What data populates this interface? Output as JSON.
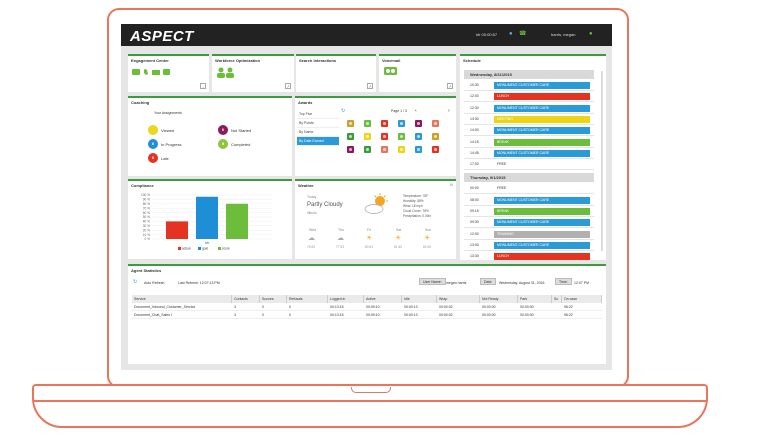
{
  "brand": {
    "logo": "ASPECT",
    "accent": "#3d9a3d",
    "frame_color": "#e8765c"
  },
  "topbar": {
    "user_id": "kfr 00:00:57",
    "user_name": "harris, megan"
  },
  "engagement": {
    "title": "Engagement Center"
  },
  "workforce": {
    "title": "Workforce Optimization"
  },
  "search": {
    "title": "Search Interactions"
  },
  "voicemail": {
    "title": "Voicemail"
  },
  "coaching": {
    "title": "Coaching",
    "header": "Your Assignments",
    "items": [
      {
        "count": "",
        "label": "Viewed",
        "color": "#e8d81e"
      },
      {
        "count": "0",
        "label": "Not Started",
        "color": "#8b1a5e"
      },
      {
        "count": "0",
        "label": "In Progress",
        "color": "#1e8fd6"
      },
      {
        "count": "5",
        "label": "Completed",
        "color": "#8cc63f"
      },
      {
        "count": "0",
        "label": "Late",
        "color": "#e53322"
      }
    ]
  },
  "awards": {
    "title": "Awards",
    "page": "Page 1 / 3",
    "tabs": [
      "Top Five",
      "By Points",
      "By Name",
      "By Date Earned"
    ]
  },
  "schedule": {
    "title": "Schedule",
    "days": [
      {
        "date": "Wednesday, 8/31/2015",
        "rows": [
          {
            "time": "10:30",
            "label": "MONUMENT CUSTOMER CARE",
            "color": "#2b9bd8"
          },
          {
            "time": "12:00",
            "label": "LUNCH",
            "color": "#e53322"
          },
          {
            "time": "12:30",
            "label": "MONUMENT CUSTOMER CARE",
            "color": "#2b9bd8"
          },
          {
            "time": "13:30",
            "label": "MEETING",
            "color": "#ecd515"
          },
          {
            "time": "14:00",
            "label": "MONUMENT CUSTOMER CARE",
            "color": "#2b9bd8"
          },
          {
            "time": "14:15",
            "label": "BREAK",
            "color": "#6cbd3c"
          },
          {
            "time": "14:45",
            "label": "MONUMENT CUSTOMER CARE",
            "color": "#2b9bd8"
          },
          {
            "time": "17:00",
            "label": "FREE",
            "color": ""
          }
        ]
      },
      {
        "date": "Thursday, 9/1/2015",
        "rows": [
          {
            "time": "00:00",
            "label": "FREE",
            "color": ""
          },
          {
            "time": "08:00",
            "label": "MONUMENT CUSTOMER CARE",
            "color": "#2b9bd8"
          },
          {
            "time": "09:15",
            "label": "BREAK",
            "color": "#6cbd3c"
          },
          {
            "time": "09:30",
            "label": "MONUMENT CUSTOMER CARE",
            "color": "#2b9bd8"
          },
          {
            "time": "12:00",
            "label": "TRAINING",
            "color": "#b0b0b0"
          },
          {
            "time": "13:00",
            "label": "MONUMENT CUSTOMER CARE",
            "color": "#2b9bd8"
          },
          {
            "time": "13:30",
            "label": "LUNCH",
            "color": "#e53322"
          }
        ]
      }
    ]
  },
  "compliance": {
    "title": "Compliance"
  },
  "chart_data": {
    "type": "bar",
    "title": "",
    "categories": [
      "actual",
      "goal",
      "score"
    ],
    "values": [
      40,
      96,
      80
    ],
    "colors": [
      "#e53322",
      "#1e8fd6",
      "#6cbd3c"
    ],
    "xlabel": "kfr",
    "ylabel": "",
    "ylim": [
      0,
      100
    ],
    "yticks": [
      "100 %",
      "90 %",
      "80 %",
      "70 %",
      "60 %",
      "50 %",
      "40 %",
      "30 %",
      "20 %",
      "10 %",
      "0 %"
    ],
    "legend": "bottom"
  },
  "weather": {
    "title": "Weather",
    "location": "Today",
    "condition": "Partly Cloudy",
    "place": "Illinois",
    "details": [
      "Temperature: 78F",
      "Humidity: 88%",
      "Wind: 18 mph",
      "Cloud Cover: 78%",
      "Precipitation: 0.00in"
    ],
    "forecast": [
      {
        "day": "Wed",
        "temp": "76 65"
      },
      {
        "day": "Thu",
        "temp": "77 63"
      },
      {
        "day": "Fri",
        "temp": "80 63"
      },
      {
        "day": "Sat",
        "temp": "81 65"
      },
      {
        "day": "Sun",
        "temp": "82 66"
      }
    ]
  },
  "agent_stats": {
    "title": "Agent Statistics",
    "auto_refresh": "Auto Refresh",
    "last_refresh": "Last Refresh: 12:07:13 PM",
    "user_name_label": "User Name:",
    "user_name_value": "megan harris",
    "date_label": "Date:",
    "date_value": "Wednesday, August 31, 2016",
    "time_label": "Time:",
    "time_value": "12:07 PM",
    "columns": [
      "Service",
      "Contacts",
      "Succes.",
      "Refusals",
      "Logged in",
      "Active",
      "Idle",
      "Wrap",
      "Not Ready",
      "Park",
      "Sc",
      "On case"
    ],
    "rows": [
      [
        "Document_Inbound_Customer_Service",
        "3",
        "0",
        "0",
        "00:13:15",
        "00:09:10",
        "00:00:13",
        "00:00:02",
        "00:00:00",
        "00:00:00",
        "",
        "96:22"
      ],
      [
        "Document_Chat_Sales I",
        "3",
        "0",
        "0",
        "00:13:15",
        "00:09:10",
        "00:00:13",
        "00:00:02",
        "00:00:00",
        "00:00:00",
        "",
        "96:22"
      ]
    ]
  }
}
